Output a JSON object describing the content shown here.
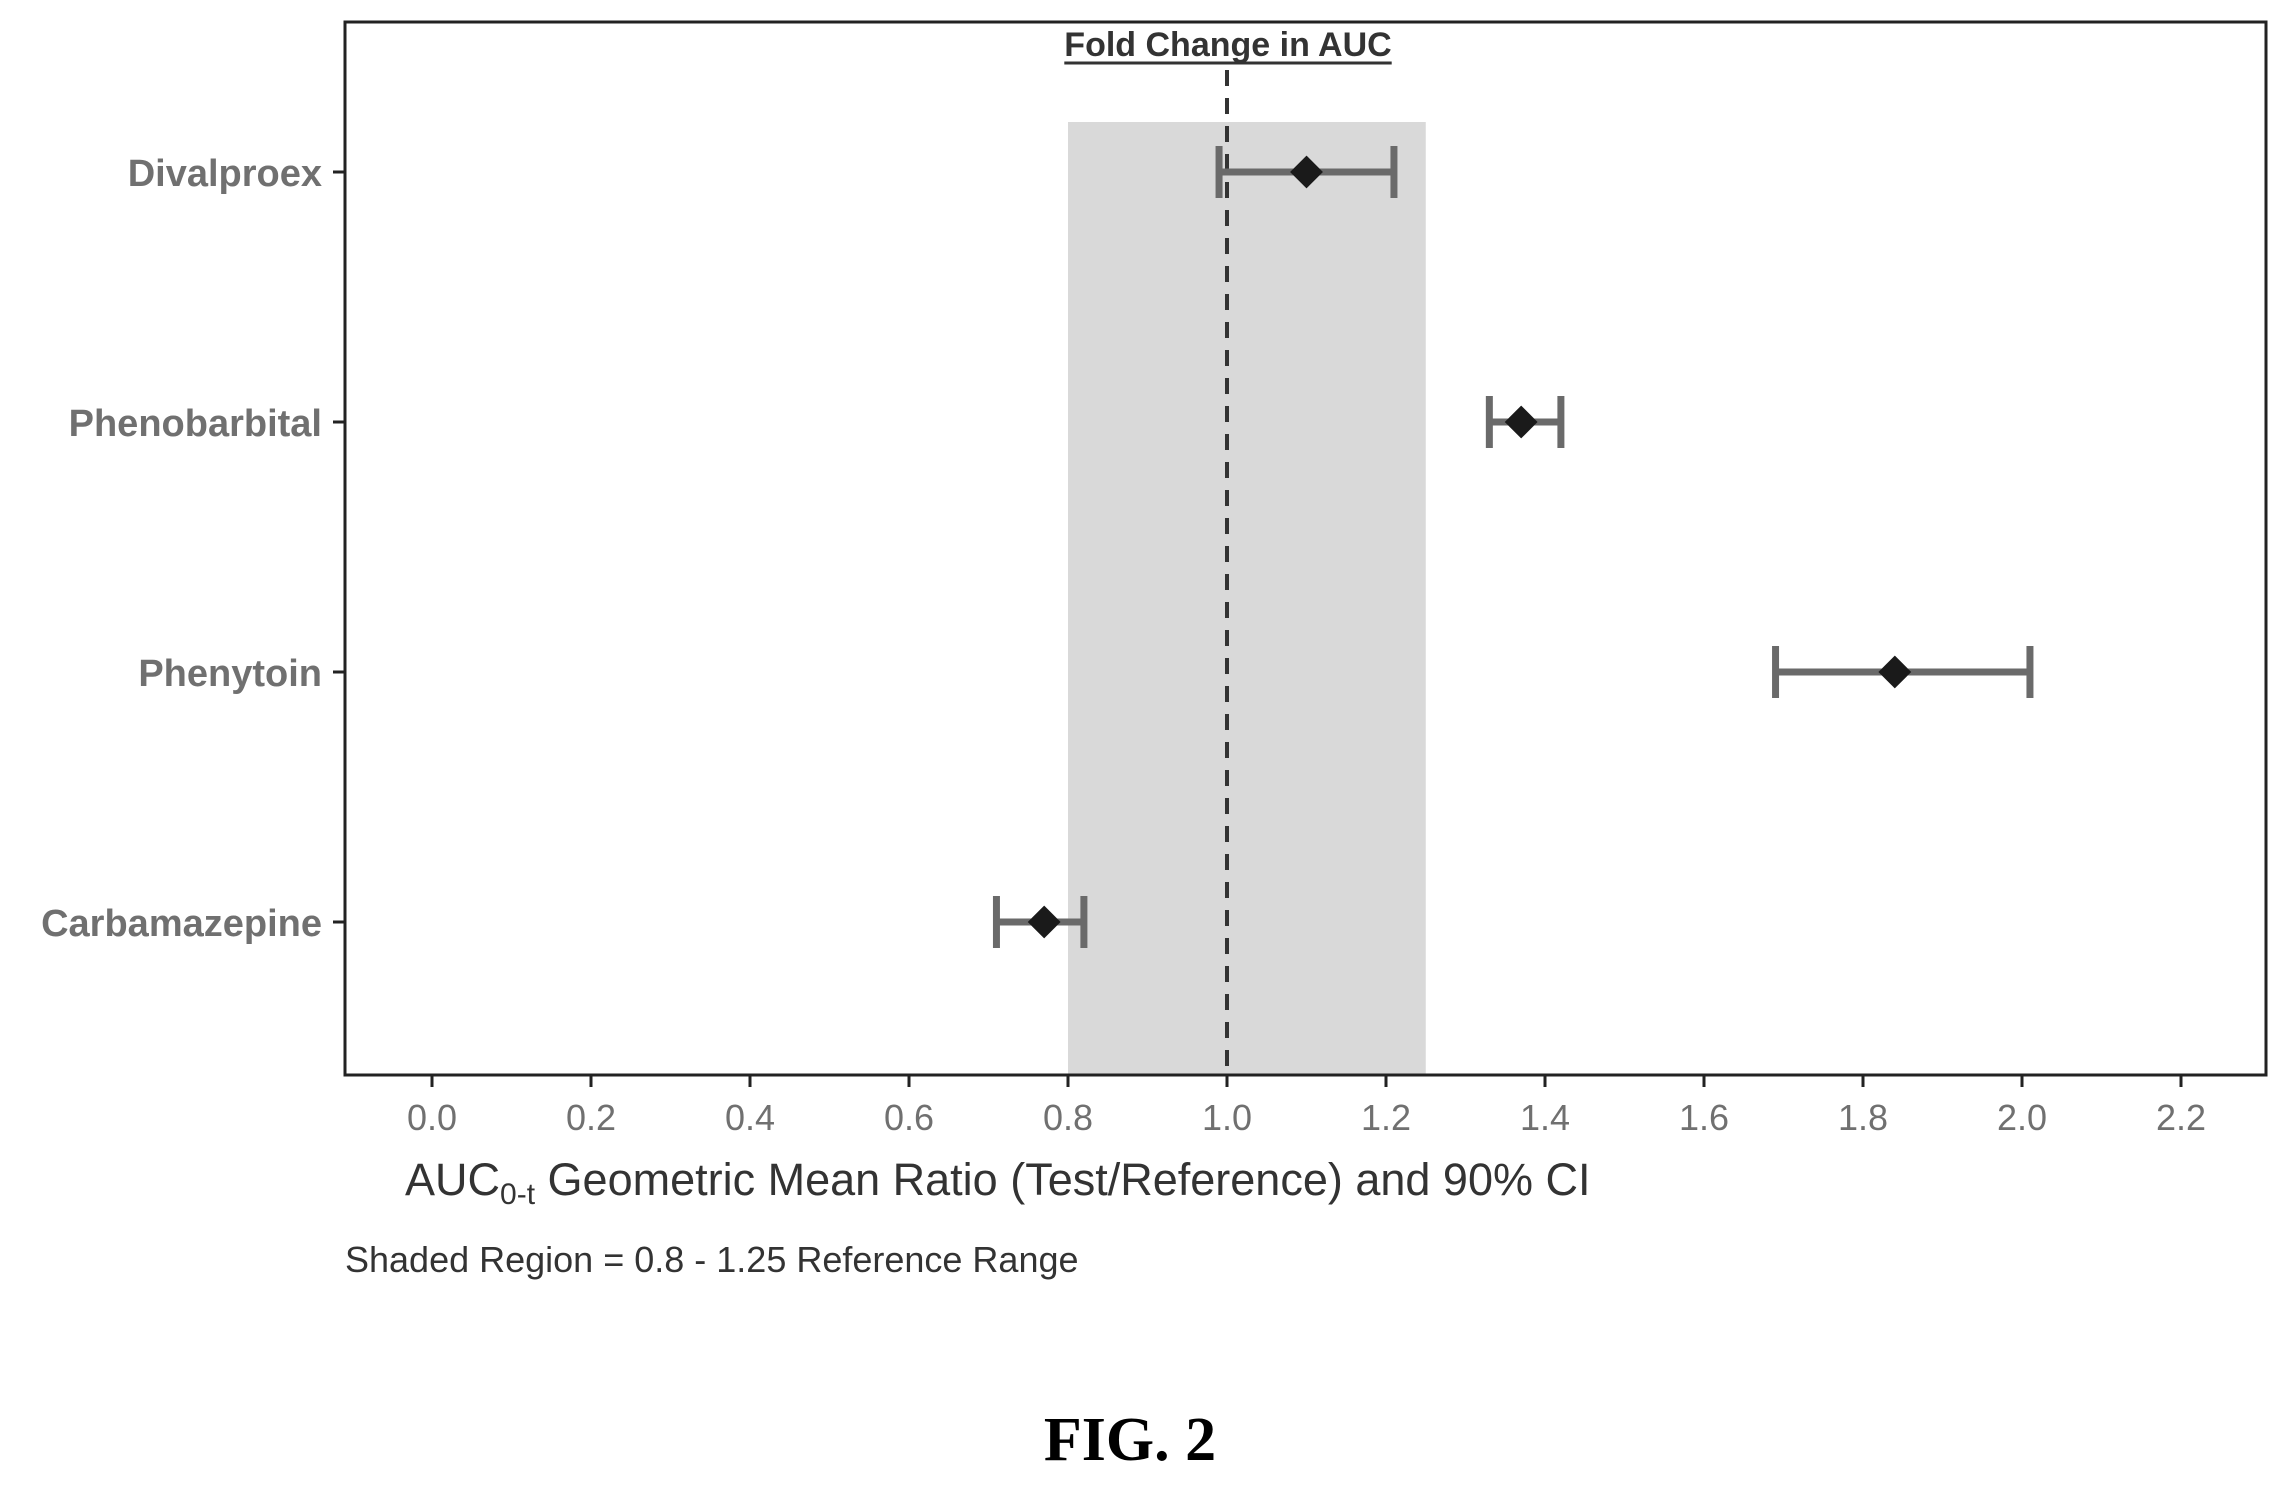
{
  "figure_caption": "FIG. 2",
  "chart_data": {
    "type": "forest",
    "title": "Fold Change in AUC",
    "xlabel_main": "AUC",
    "xlabel_subscript": "0-t",
    "xlabel_rest": " Geometric Mean Ratio (Test/Reference) and 90% CI",
    "note": "Shaded Region = 0.8 - 1.25 Reference Range",
    "xlim": [
      -0.1,
      2.3
    ],
    "xticks": [
      "0.0",
      "0.2",
      "0.4",
      "0.6",
      "0.8",
      "1.0",
      "1.2",
      "1.4",
      "1.6",
      "1.8",
      "2.0",
      "2.2"
    ],
    "xtick_values": [
      0.0,
      0.2,
      0.4,
      0.6,
      0.8,
      1.0,
      1.2,
      1.4,
      1.6,
      1.8,
      2.0,
      2.2
    ],
    "reference_line": 1.0,
    "shaded_region": [
      0.8,
      1.25
    ],
    "rows": [
      {
        "label": "Divalproex",
        "estimate": 1.1,
        "lower": 0.99,
        "upper": 1.21
      },
      {
        "label": "Phenobarbital",
        "estimate": 1.37,
        "lower": 1.33,
        "upper": 1.42
      },
      {
        "label": "Phenytoin",
        "estimate": 1.84,
        "lower": 1.69,
        "upper": 2.01
      },
      {
        "label": "Carbamazepine",
        "estimate": 0.77,
        "lower": 0.71,
        "upper": 0.82
      }
    ],
    "grid": false,
    "colors": {
      "shade": "#d9d9d9",
      "ci_line": "#6a6a6a",
      "marker": "#1a1a1a",
      "label": "#707070",
      "axis": "#222222",
      "reference_line": "#333333"
    }
  }
}
